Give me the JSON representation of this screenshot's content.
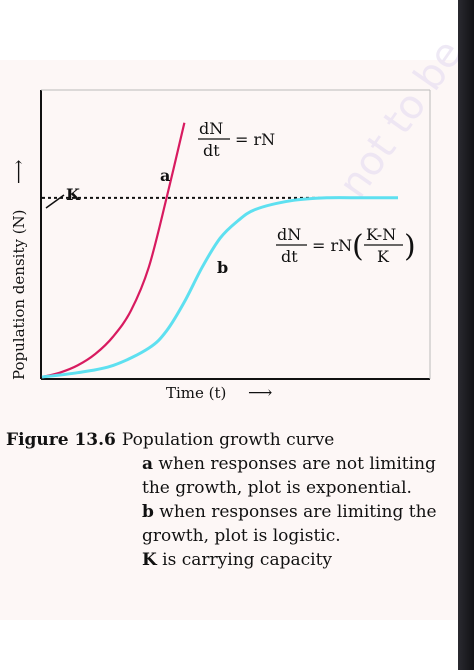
{
  "chart_data": {
    "type": "line",
    "xlabel": "Time (t)",
    "ylabel": "Population density (N)",
    "x_arrow": "⟶",
    "y_arrow": "⟶",
    "grid": false,
    "carrying_capacity": {
      "label": "K",
      "value": 0.62
    },
    "series": [
      {
        "name": "a",
        "equation": {
          "numerator": "dN",
          "denominator": "dt",
          "rhs": "= rN"
        },
        "color": "#d81b60",
        "x": [
          0.0,
          0.05,
          0.1,
          0.15,
          0.2,
          0.25,
          0.3,
          0.35,
          0.4
        ],
        "y": [
          0.0,
          0.015,
          0.04,
          0.08,
          0.14,
          0.23,
          0.38,
          0.62,
          0.88
        ]
      },
      {
        "name": "b",
        "equation": {
          "numerator": "dN",
          "denominator": "dt",
          "rhs": "= rN",
          "frac_num": "K-N",
          "frac_den": "K"
        },
        "color": "#5ee0f0",
        "x": [
          0.0,
          0.1,
          0.2,
          0.3,
          0.35,
          0.4,
          0.45,
          0.5,
          0.55,
          0.6,
          0.7,
          0.8,
          0.9,
          1.0
        ],
        "y": [
          0.0,
          0.015,
          0.04,
          0.1,
          0.16,
          0.26,
          0.38,
          0.48,
          0.54,
          0.58,
          0.61,
          0.62,
          0.62,
          0.62
        ]
      }
    ],
    "xlim": [
      0,
      1
    ],
    "ylim": [
      0,
      1
    ]
  },
  "caption": {
    "label": "Figure 13.6",
    "title": "Population growth curve",
    "items": [
      {
        "key": "a",
        "text": " when responses are not limiting the growth, plot is exponential."
      },
      {
        "key": "b",
        "text": " when responses are limiting the growth, plot is logistic."
      },
      {
        "key": "K",
        "text": " is carrying capacity"
      }
    ]
  },
  "watermark": "not to be"
}
